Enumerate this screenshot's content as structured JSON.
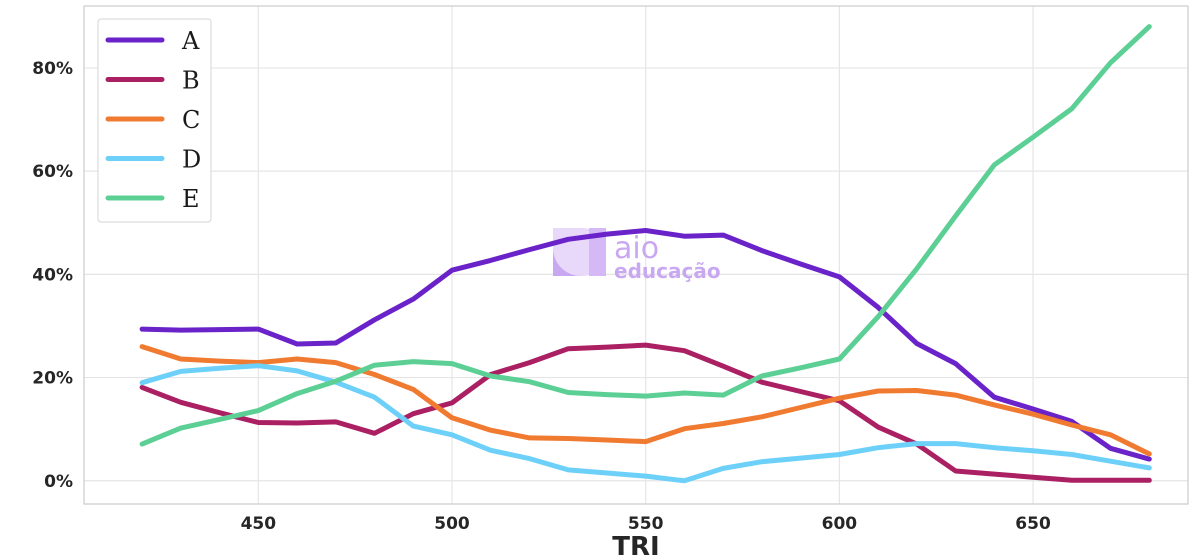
{
  "watermark": {
    "main": "aio",
    "sub": "educação"
  },
  "chart_data": {
    "type": "line",
    "title": "",
    "xlabel": "TRI",
    "ylabel": "",
    "xlim": [
      405,
      690
    ],
    "ylim": [
      -4.5,
      92
    ],
    "x_ticks": [
      450,
      500,
      550,
      600,
      650
    ],
    "x_tick_labels": [
      "450",
      "500",
      "550",
      "600",
      "650"
    ],
    "y_ticks": [
      0,
      20,
      40,
      60,
      80
    ],
    "y_tick_labels": [
      "0%",
      "20%",
      "40%",
      "60%",
      "80%"
    ],
    "grid": true,
    "legend_position": "upper-left",
    "x": [
      420,
      430,
      440,
      450,
      460,
      470,
      480,
      490,
      500,
      510,
      520,
      530,
      540,
      550,
      560,
      570,
      580,
      590,
      600,
      610,
      620,
      630,
      640,
      650,
      660,
      670,
      680
    ],
    "series": [
      {
        "name": "A",
        "color": "#6a22c9",
        "values": [
          29.4,
          29.2,
          29.3,
          29.4,
          26.5,
          26.7,
          31.2,
          35.2,
          40.8,
          42.7,
          44.8,
          46.8,
          47.8,
          48.5,
          47.4,
          47.6,
          44.6,
          42.0,
          39.5,
          33.6,
          26.6,
          22.7,
          16.2,
          13.9,
          11.5,
          6.3,
          4.2
        ]
      },
      {
        "name": "B",
        "color": "#ab1f63",
        "values": [
          18.1,
          15.2,
          13.2,
          11.3,
          11.2,
          11.4,
          9.2,
          13.0,
          15.1,
          20.6,
          22.9,
          25.6,
          25.9,
          26.3,
          25.2,
          22.2,
          19.1,
          17.3,
          15.5,
          10.4,
          7.1,
          1.9,
          1.3,
          0.7,
          0.1,
          0.1,
          0.1
        ]
      },
      {
        "name": "C",
        "color": "#ef7a30",
        "values": [
          26.0,
          23.6,
          23.2,
          22.9,
          23.6,
          22.9,
          20.6,
          17.7,
          12.2,
          9.8,
          8.3,
          8.2,
          7.9,
          7.6,
          10.1,
          11.1,
          12.4,
          14.2,
          16.0,
          17.4,
          17.5,
          16.6,
          14.7,
          12.9,
          10.8,
          8.9,
          5.2
        ]
      },
      {
        "name": "D",
        "color": "#6dd0f9",
        "values": [
          19.0,
          21.2,
          21.8,
          22.3,
          21.3,
          19.1,
          16.2,
          10.6,
          8.9,
          5.9,
          4.3,
          2.1,
          1.5,
          0.9,
          0.0,
          2.4,
          3.7,
          4.4,
          5.1,
          6.4,
          7.2,
          7.2,
          6.4,
          5.8,
          5.1,
          3.8,
          2.5
        ]
      },
      {
        "name": "E",
        "color": "#5ccf95",
        "values": [
          7.1,
          10.2,
          11.9,
          13.6,
          16.9,
          19.3,
          22.4,
          23.1,
          22.7,
          20.3,
          19.2,
          17.1,
          16.7,
          16.4,
          17.0,
          16.6,
          20.3,
          21.9,
          23.6,
          31.8,
          41.1,
          51.3,
          61.2,
          66.6,
          72.1,
          81.0,
          88.0
        ]
      }
    ]
  }
}
